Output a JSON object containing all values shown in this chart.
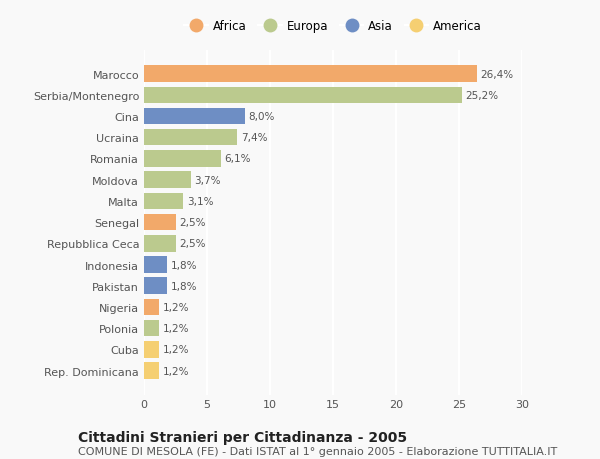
{
  "countries": [
    "Marocco",
    "Serbia/Montenegro",
    "Cina",
    "Ucraina",
    "Romania",
    "Moldova",
    "Malta",
    "Senegal",
    "Repubblica Ceca",
    "Indonesia",
    "Pakistan",
    "Nigeria",
    "Polonia",
    "Cuba",
    "Rep. Dominicana"
  ],
  "values": [
    26.4,
    25.2,
    8.0,
    7.4,
    6.1,
    3.7,
    3.1,
    2.5,
    2.5,
    1.8,
    1.8,
    1.2,
    1.2,
    1.2,
    1.2
  ],
  "labels": [
    "26,4%",
    "25,2%",
    "8,0%",
    "7,4%",
    "6,1%",
    "3,7%",
    "3,1%",
    "2,5%",
    "2,5%",
    "1,8%",
    "1,8%",
    "1,2%",
    "1,2%",
    "1,2%",
    "1,2%"
  ],
  "continents": [
    "Africa",
    "Europa",
    "Asia",
    "Europa",
    "Europa",
    "Europa",
    "Europa",
    "Africa",
    "Europa",
    "Asia",
    "Asia",
    "Africa",
    "Europa",
    "America",
    "America"
  ],
  "continent_colors": {
    "Africa": "#F2A96A",
    "Europa": "#BBCA8E",
    "Asia": "#6E8EC4",
    "America": "#F5CF72"
  },
  "legend_order": [
    "Africa",
    "Europa",
    "Asia",
    "America"
  ],
  "title": "Cittadini Stranieri per Cittadinanza - 2005",
  "subtitle": "COMUNE DI MESOLA (FE) - Dati ISTAT al 1° gennaio 2005 - Elaborazione TUTTITALIA.IT",
  "xlim": [
    0,
    30
  ],
  "xticks": [
    0,
    5,
    10,
    15,
    20,
    25,
    30
  ],
  "background_color": "#f9f9f9",
  "bar_height": 0.78,
  "title_fontsize": 10,
  "subtitle_fontsize": 8,
  "label_fontsize": 7.5,
  "tick_fontsize": 8,
  "legend_fontsize": 8.5
}
